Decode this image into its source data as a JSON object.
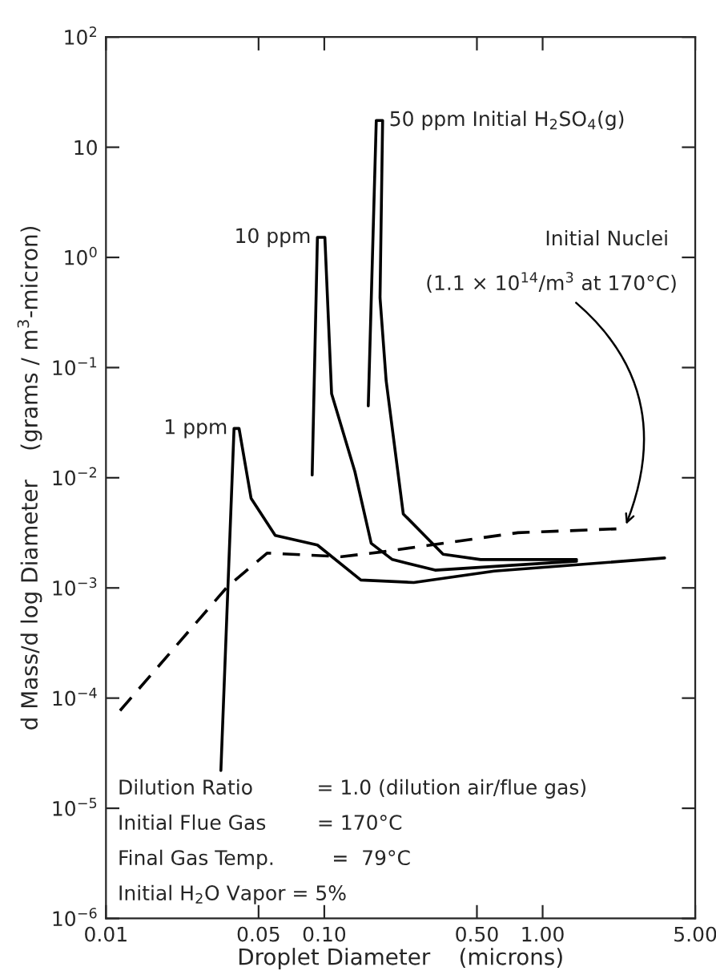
{
  "chart_data": {
    "type": "line",
    "xlabel": "Droplet Diameter    (microns)",
    "ylabel": "d Mass/d log Diameter    (grams / m$^{3}$-micron)",
    "log": "xy",
    "grid": false,
    "legend": false,
    "marker": "none",
    "xlim": [
      0.01,
      5.0
    ],
    "xticks": [
      {
        "value": 0.01,
        "label": "0.01"
      },
      {
        "value": 0.05,
        "label": "0.05"
      },
      {
        "value": 0.1,
        "label": "0.10"
      },
      {
        "value": 0.5,
        "label": "0.50"
      },
      {
        "value": 1.0,
        "label": "1.00"
      },
      {
        "value": 5.0,
        "label": "5.00"
      }
    ],
    "ylim": [
      1e-06,
      100
    ],
    "yticks": [
      {
        "value": 1e-06,
        "label": "10$^{−6}$"
      },
      {
        "value": 1e-05,
        "label": "10$^{−5}$"
      },
      {
        "value": 0.0001,
        "label": "10$^{−4}$"
      },
      {
        "value": 0.001,
        "label": "10$^{−3}$"
      },
      {
        "value": 0.01,
        "label": "10$^{−2}$"
      },
      {
        "value": 0.1,
        "label": "10$^{−1}$"
      },
      {
        "value": 1,
        "label": "10$^{0}$"
      },
      {
        "value": 10,
        "label": "10"
      },
      {
        "value": 100,
        "label": "10$^{2}$"
      }
    ],
    "series": [
      {
        "name": "1 ppm",
        "color": "#000000",
        "line_style": "solid",
        "x": [
          0.0336,
          0.0386,
          0.0407,
          0.0462,
          0.0596,
          0.093,
          0.147,
          0.257,
          0.6,
          3.62
        ],
        "values": [
          2.2e-05,
          0.028,
          0.028,
          0.0065,
          0.003,
          0.00245,
          0.00118,
          0.00112,
          0.00142,
          0.00187
        ]
      },
      {
        "name": "10 ppm",
        "color": "#000000",
        "line_style": "solid",
        "x": [
          0.088,
          0.093,
          0.1006,
          0.108,
          0.138,
          0.164,
          0.205,
          0.322,
          1.43
        ],
        "values": [
          0.0106,
          1.52,
          1.52,
          0.058,
          0.0114,
          0.00254,
          0.00181,
          0.00145,
          0.00175
        ]
      },
      {
        "name": "50 ppm Initial H$_{2}$SO$_{4}$(g)",
        "color": "#000000",
        "line_style": "solid",
        "x": [
          0.159,
          0.173,
          0.185,
          0.18,
          0.192,
          0.23,
          0.35,
          0.52,
          1.43
        ],
        "values": [
          0.045,
          17.5,
          17.5,
          0.43,
          0.076,
          0.0047,
          0.00202,
          0.00181,
          0.00181
        ]
      },
      {
        "color": "#000000",
        "line_style": "dashed",
        "x": [
          0.0116,
          0.0359,
          0.0547,
          0.12,
          0.189,
          0.77,
          2.37
        ],
        "values": [
          7.7e-05,
          0.00102,
          0.00207,
          0.00192,
          0.00214,
          0.00317,
          0.00346
        ]
      }
    ],
    "annotations": [
      "Initial Nuclei",
      {
        "text": "(1.1 × 10$^{14}$/m$^{3}$ at 170°C)",
        "x": 2.37,
        "y": 0.00346
      },
      "Dilution Ratio          = 1.0 (dilution air/flue gas)",
      "Initial Flue Gas        = 170°C",
      "Final Gas Temp.         =  79°C",
      "Initial H$_{2}$O Vapor = 5%"
    ]
  }
}
